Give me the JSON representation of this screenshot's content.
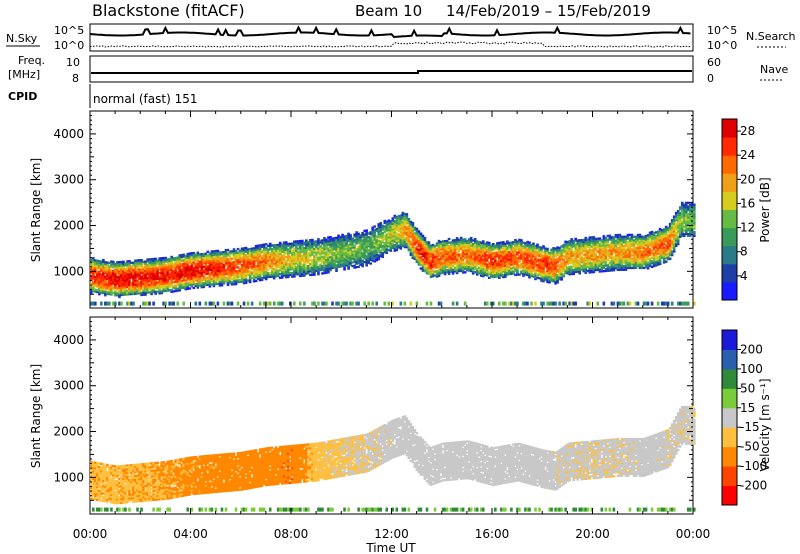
{
  "header": {
    "station": "Blackstone (fitACF)",
    "beam": "Beam 10",
    "date_range": "14/Feb/2019 – 15/Feb/2019"
  },
  "status_panel": {
    "nsky_label": "N.Sky",
    "nsky_ticks": [
      "10^5",
      "10^0"
    ],
    "nsearch_label": "N.Search",
    "freq_label": "Freq.",
    "freq_unit": "[MHz]",
    "freq_ticks": [
      "10",
      "8"
    ],
    "nave_label": "Nave",
    "nave_ticks": [
      "60",
      "0"
    ],
    "cpid_label": "CPID",
    "cpid_text": "normal (fast) 151"
  },
  "colors": {
    "power_scale": [
      "#1a1aff",
      "#1f3fa8",
      "#2a7a8a",
      "#3a9a5a",
      "#66bb44",
      "#d6cc1e",
      "#f0a018",
      "#ff6a00",
      "#ff2a00",
      "#e00000"
    ],
    "velocity_scale": [
      "#ff0000",
      "#ff4400",
      "#ff8800",
      "#ffc040",
      "#c8c8c8",
      "#7acc3a",
      "#2f8a3a",
      "#2a5fb0",
      "#1a1ad8"
    ],
    "ground_scatter": "#c8c8c8"
  },
  "chart_data": [
    {
      "type": "heatmap",
      "title": "Power",
      "xlabel": "Time UT",
      "ylabel": "Slant Range [km]",
      "x_ticks": [
        "00:00",
        "04:00",
        "08:00",
        "12:00",
        "16:00",
        "20:00",
        "00:00"
      ],
      "x_hours_range": [
        0,
        24
      ],
      "y_ticks": [
        1000,
        2000,
        3000,
        4000
      ],
      "ylim": [
        200,
        4500
      ],
      "colorbar_label": "Power [dB]",
      "colorbar_ticks": [
        4,
        8,
        12,
        16,
        20,
        24,
        28
      ],
      "colorbar_range": [
        0,
        30
      ],
      "echo_band": {
        "time_hours": [
          0,
          1,
          2,
          3,
          4,
          5,
          6,
          7,
          8,
          9,
          10,
          11,
          12,
          12.5,
          13,
          13.5,
          14,
          15,
          16,
          17,
          18,
          18.5,
          19,
          20,
          21,
          22,
          23,
          23.5
        ],
        "center_km": [
          900,
          800,
          850,
          900,
          1000,
          1050,
          1100,
          1200,
          1250,
          1300,
          1400,
          1500,
          1800,
          1900,
          1500,
          1200,
          1300,
          1350,
          1200,
          1300,
          1150,
          1100,
          1300,
          1350,
          1400,
          1400,
          1600,
          2100
        ],
        "peak_power_db": [
          26,
          28,
          28,
          27,
          28,
          26,
          24,
          22,
          18,
          16,
          14,
          12,
          16,
          20,
          26,
          26,
          24,
          22,
          26,
          24,
          26,
          24,
          20,
          20,
          20,
          22,
          24,
          14
        ]
      }
    },
    {
      "type": "heatmap",
      "title": "Velocity",
      "xlabel": "Time UT",
      "ylabel": "Slant Range [km]",
      "x_ticks": [
        "00:00",
        "04:00",
        "08:00",
        "12:00",
        "16:00",
        "20:00",
        "00:00"
      ],
      "x_hours_range": [
        0,
        24
      ],
      "y_ticks": [
        1000,
        2000,
        3000,
        4000
      ],
      "ylim": [
        200,
        4500
      ],
      "colorbar_label": "Velocity [m s⁻¹]",
      "colorbar_ticks": [
        200,
        100,
        50,
        15,
        -15,
        -50,
        -100,
        -200
      ],
      "colorbar_range": [
        -250,
        250
      ],
      "velocity_band": {
        "time_hours": [
          0,
          2,
          4,
          6,
          8,
          9,
          10,
          11,
          12,
          13,
          14,
          16,
          18,
          20,
          22,
          23.5
        ],
        "velocity_ms": [
          -40,
          -45,
          -60,
          -70,
          -90,
          -30,
          -20,
          -10,
          0,
          0,
          0,
          0,
          0,
          -10,
          0,
          -5
        ]
      }
    }
  ]
}
